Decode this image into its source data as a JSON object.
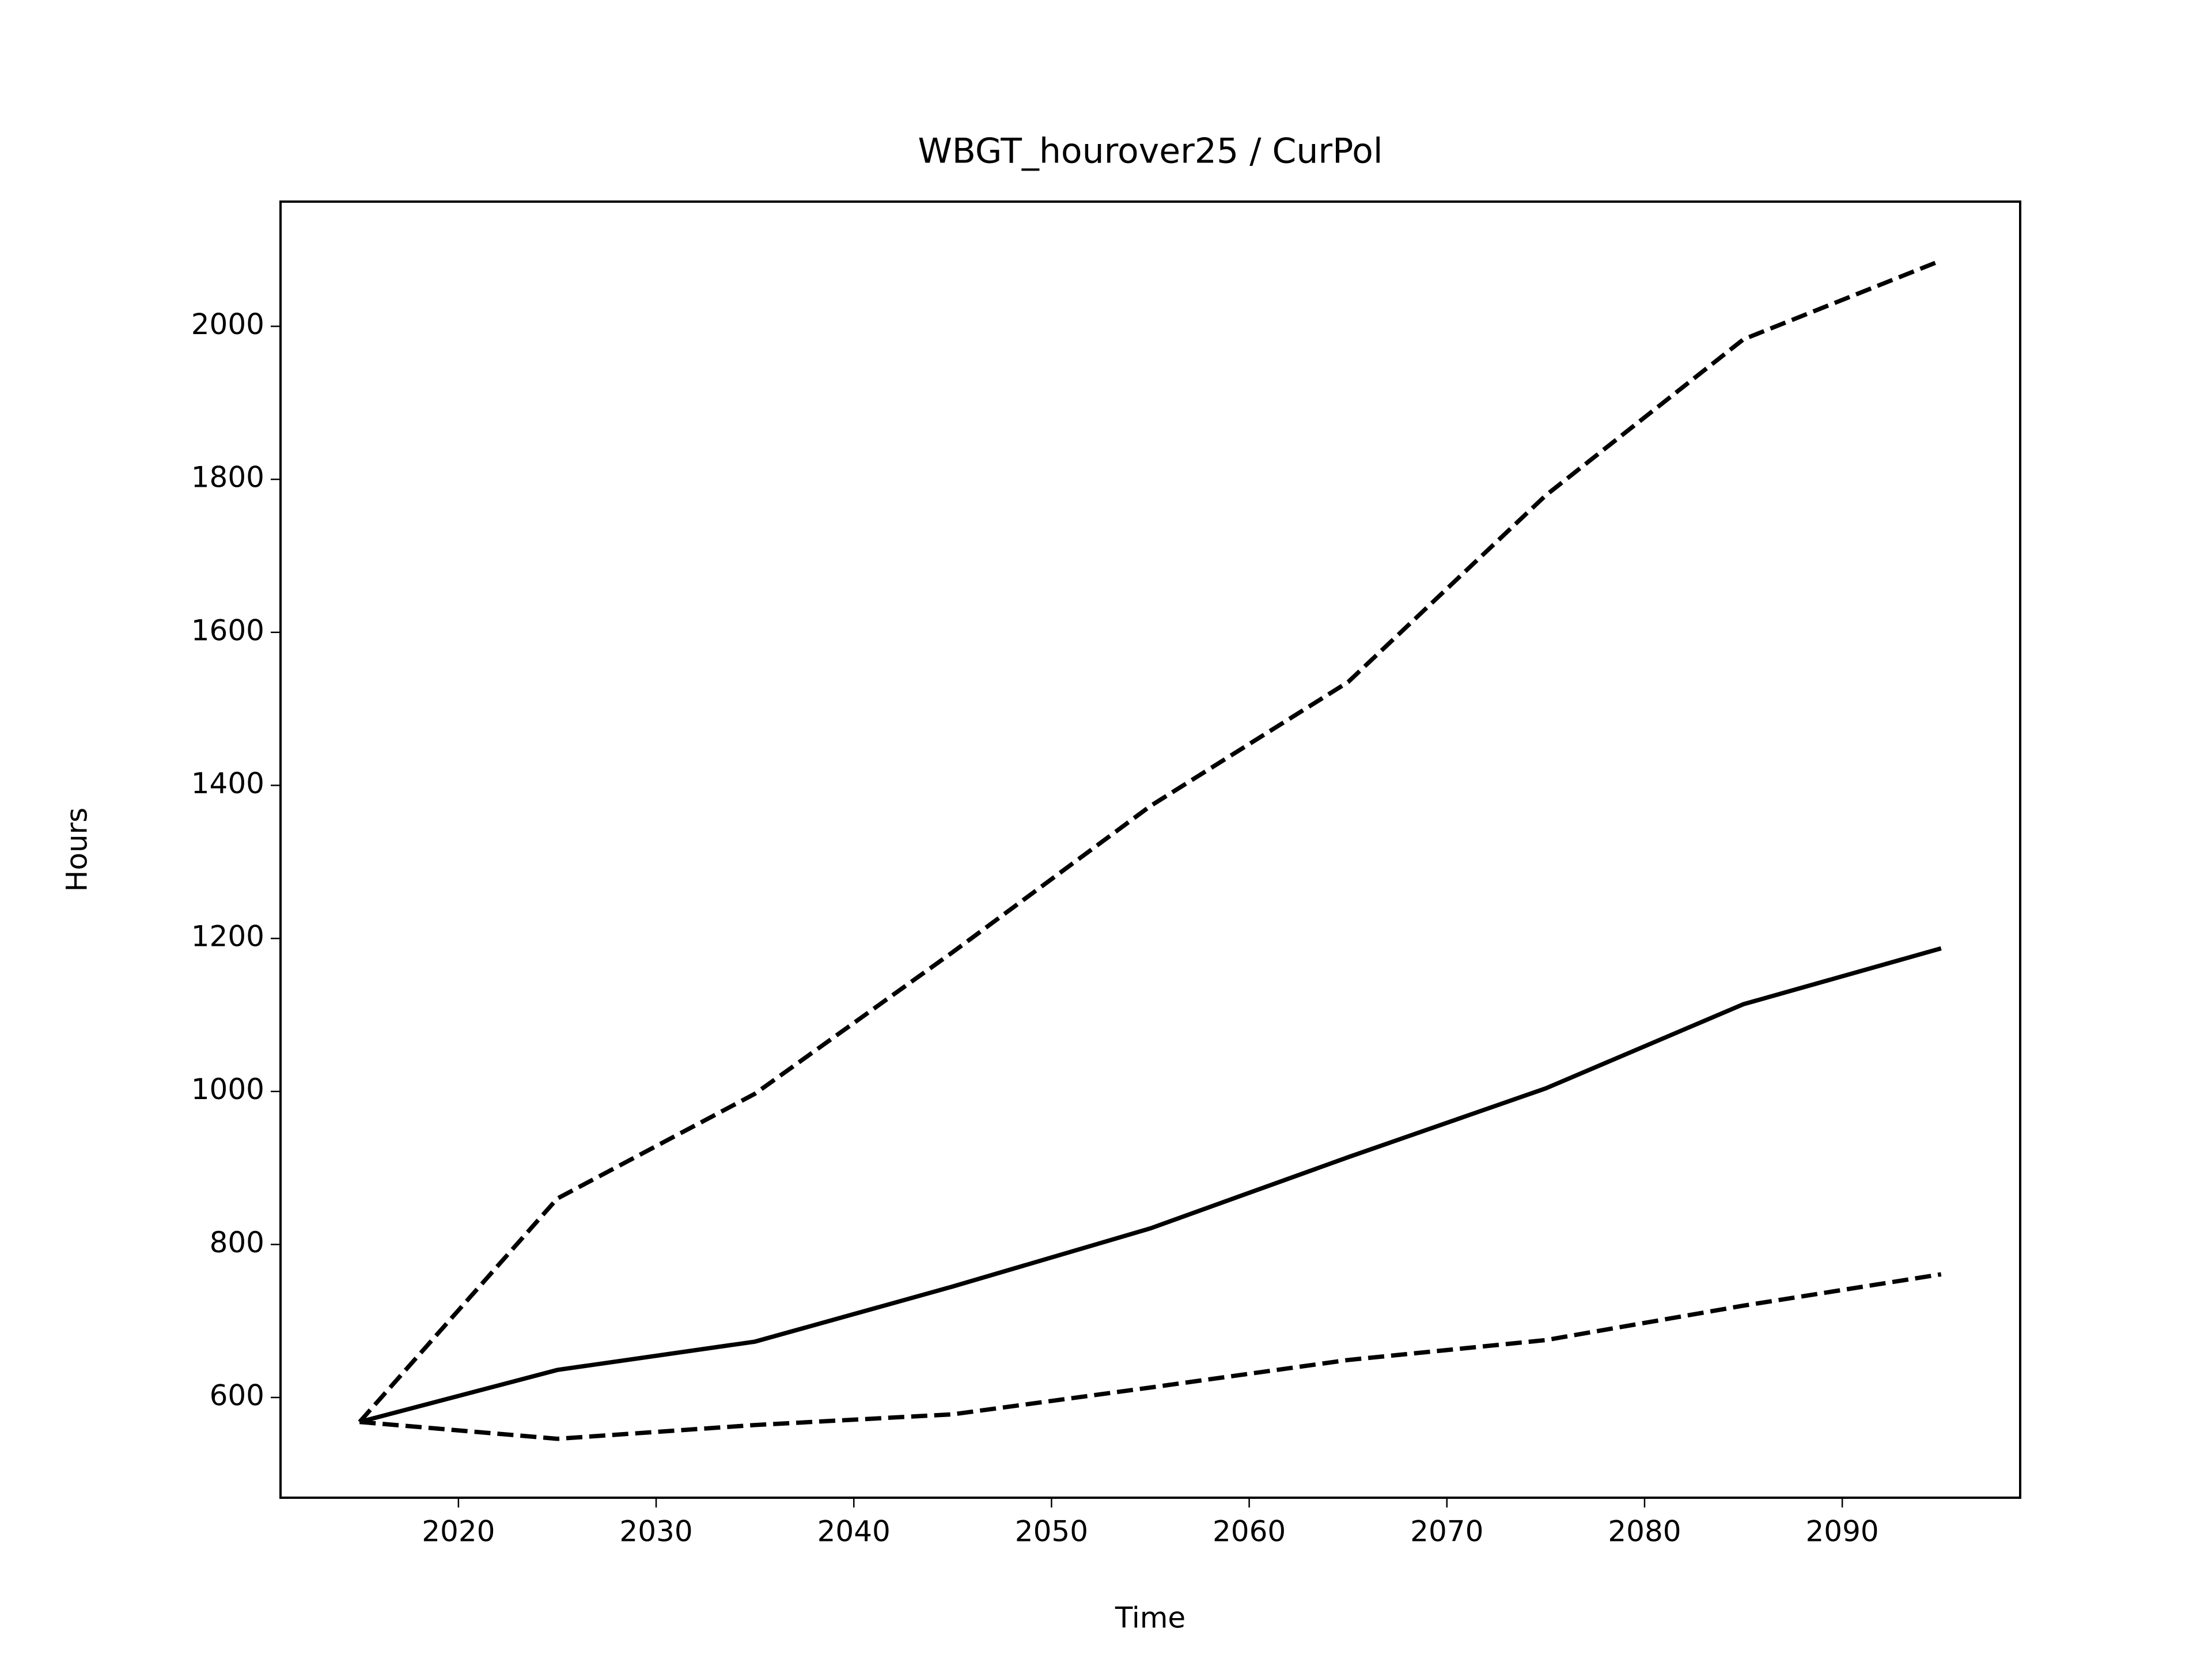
{
  "chart_data": {
    "type": "line",
    "title": "WBGT_hourover25 / CurPol",
    "x_label": "Time",
    "y_label": "Hours",
    "x": [
      2015,
      2025,
      2035,
      2045,
      2055,
      2065,
      2075,
      2085,
      2095
    ],
    "series": [
      {
        "color": "#000000",
        "dash": "solid",
        "values": [
          568,
          636,
          673,
          745,
          821,
          914,
          1004,
          1114,
          1187
        ]
      },
      {
        "color": "#000000",
        "dash": "dashed",
        "values": [
          568,
          860,
          997,
          1182,
          1373,
          1535,
          1779,
          1983,
          2086
        ]
      },
      {
        "color": "#000000",
        "dash": "dashed",
        "values": [
          568,
          546,
          564,
          578,
          613,
          649,
          675,
          720,
          761
        ]
      }
    ],
    "xlim": [
      2011,
      2099
    ],
    "ylim": [
      469,
      2163
    ],
    "xticks": [
      2020,
      2030,
      2040,
      2050,
      2060,
      2070,
      2080,
      2090
    ],
    "yticks": [
      600,
      800,
      1000,
      1200,
      1400,
      1600,
      1800,
      2000
    ],
    "grid": false
  }
}
